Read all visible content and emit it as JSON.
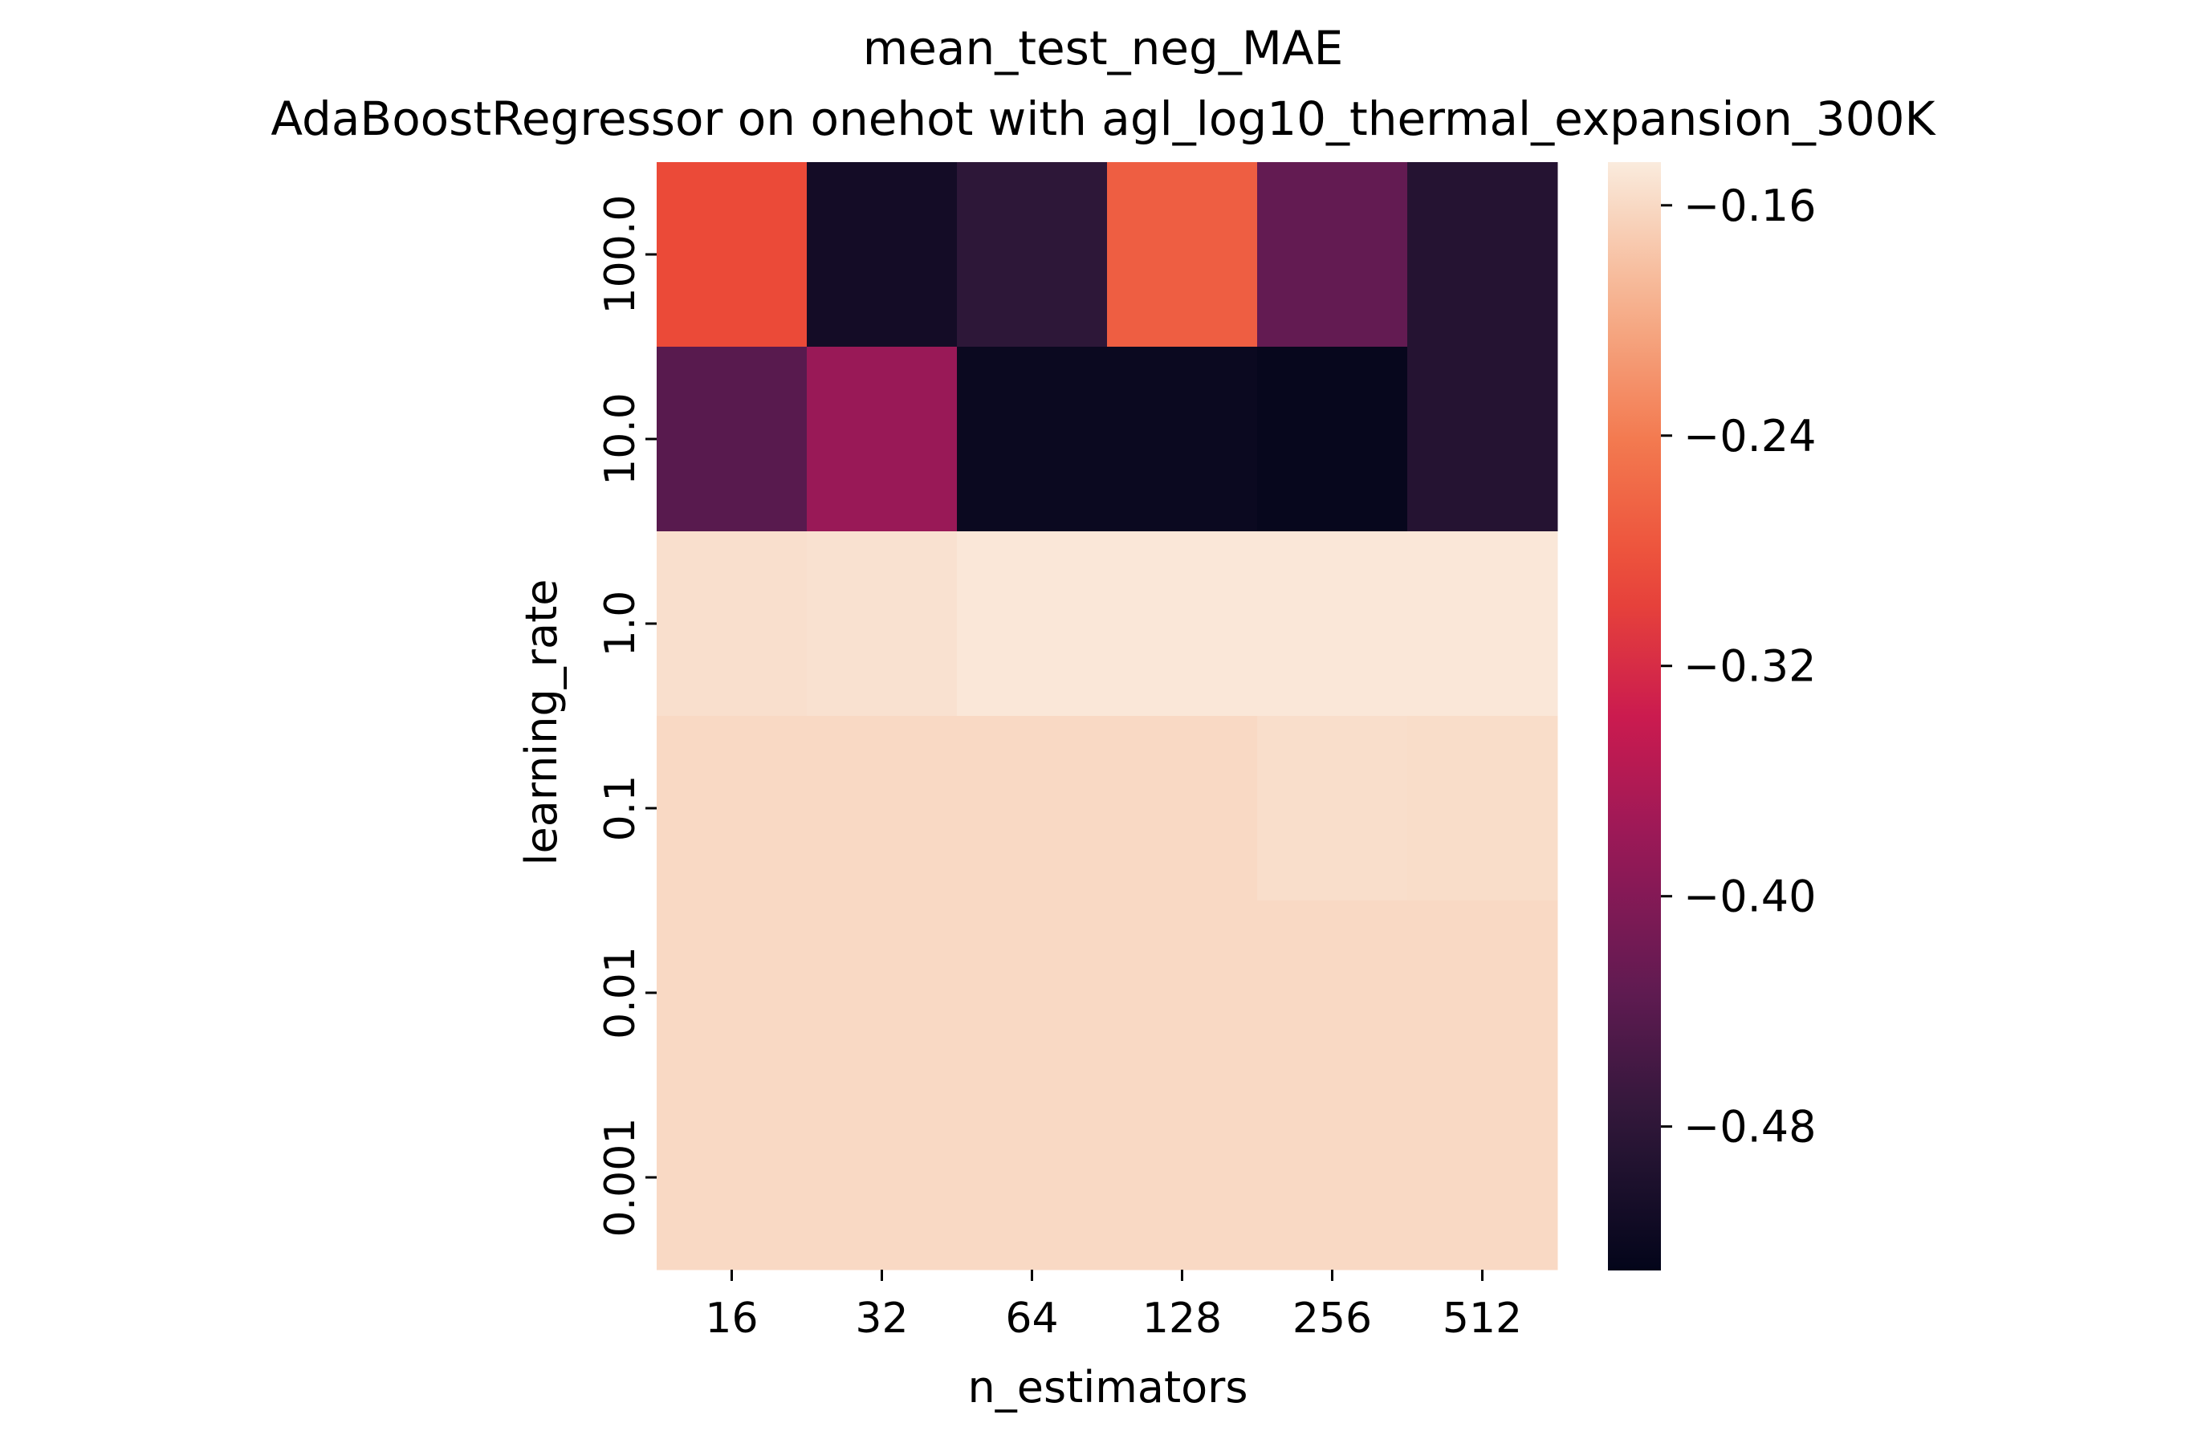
{
  "chart_data": {
    "type": "heatmap",
    "title": "mean_test_neg_MAE",
    "subtitle": "AdaBoostRegressor on onehot with agl_log10_thermal_expansion_300K",
    "xlabel": "n_estimators",
    "ylabel": "learning_rate",
    "x_categories": [
      "16",
      "32",
      "64",
      "128",
      "256",
      "512"
    ],
    "y_categories": [
      "100.0",
      "10.0",
      "1.0",
      "0.1",
      "0.01",
      "0.001"
    ],
    "values": [
      [
        -0.29,
        -0.51,
        -0.48,
        -0.27,
        -0.43,
        -0.49
      ],
      [
        -0.44,
        -0.38,
        -0.52,
        -0.52,
        -0.525,
        -0.49
      ],
      [
        -0.155,
        -0.153,
        -0.148,
        -0.148,
        -0.148,
        -0.148
      ],
      [
        -0.16,
        -0.16,
        -0.16,
        -0.16,
        -0.156,
        -0.157
      ],
      [
        -0.16,
        -0.16,
        -0.16,
        -0.16,
        -0.16,
        -0.16
      ],
      [
        -0.16,
        -0.16,
        -0.16,
        -0.16,
        -0.16,
        -0.16
      ]
    ],
    "colorbar": {
      "range": [
        -0.53,
        -0.145
      ],
      "ticks": [
        -0.16,
        -0.24,
        -0.32,
        -0.4,
        -0.48
      ],
      "tick_labels": [
        "−0.16",
        "−0.24",
        "−0.32",
        "−0.40",
        "−0.48"
      ],
      "colormap": "rocket"
    },
    "grid": false
  }
}
